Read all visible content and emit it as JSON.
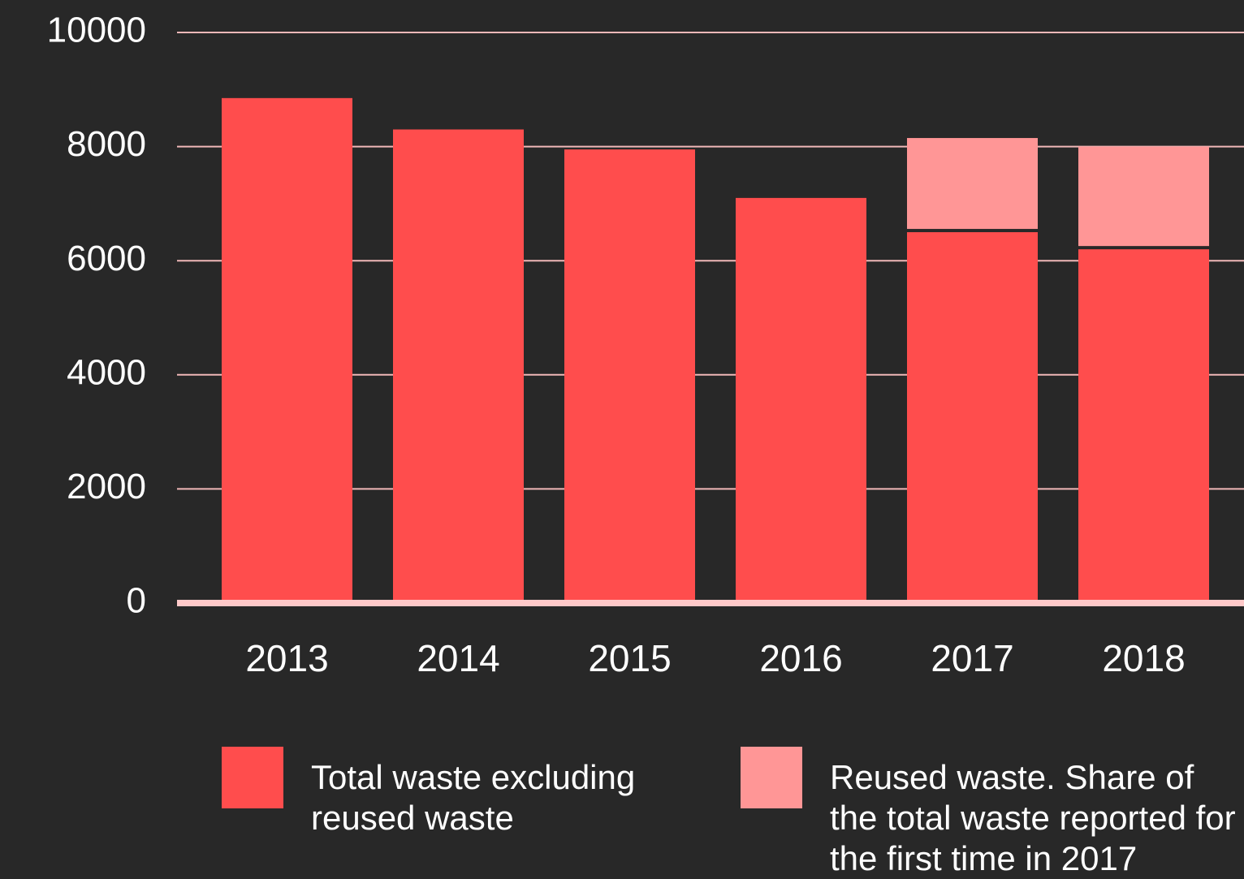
{
  "chart_data": {
    "type": "bar",
    "stacked": true,
    "categories": [
      "2013",
      "2014",
      "2015",
      "2016",
      "2017",
      "2018"
    ],
    "series": [
      {
        "name": "Total waste excluding reused waste",
        "color": "#ff4d4d",
        "values": [
          8850,
          8300,
          7950,
          7100,
          6500,
          6200
        ]
      },
      {
        "name": "Reused waste. Share of the total waste reported for the first time in 2017",
        "color": "#ff9696",
        "values": [
          null,
          null,
          null,
          null,
          1650,
          1800
        ]
      }
    ],
    "ylim": [
      0,
      10000
    ],
    "yticks": [
      0,
      2000,
      4000,
      6000,
      8000,
      10000
    ],
    "grid": true
  }
}
